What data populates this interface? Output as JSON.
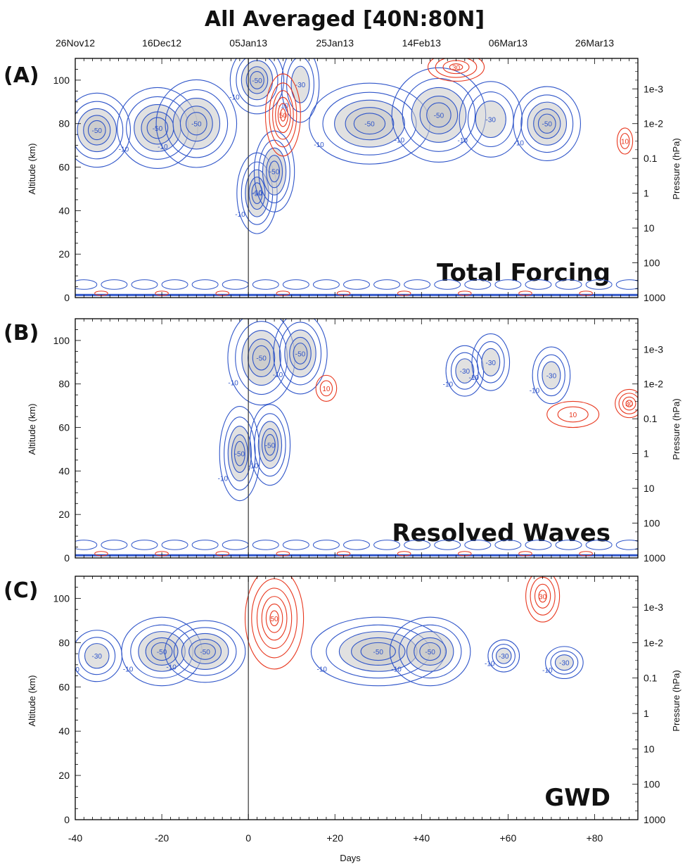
{
  "figure_title": "All Averaged [40N:80N]",
  "colors": {
    "positive": "#e8371e",
    "negative": "#2f55c9",
    "shade": "#c8c8c8",
    "frame": "#000000"
  },
  "chart_data": [
    {
      "type": "heatmap",
      "panel_label": "(A)",
      "inner_label": "Total Forcing",
      "xlabel": "",
      "ylabel": "Altitude (km)",
      "y2label": "Pressure (hPa)",
      "xlim": [
        -40,
        90
      ],
      "ylim": [
        0,
        110
      ],
      "top_dates": [
        "26Nov12",
        "16Dec12",
        "05Jan13",
        "25Jan13",
        "14Feb13",
        "06Mar13",
        "26Mar13"
      ],
      "top_date_days": [
        -40,
        -20,
        0,
        20,
        40,
        60,
        80
      ],
      "yticks": [
        0,
        20,
        40,
        60,
        80,
        100
      ],
      "pressure_ticks": [
        "1000",
        "100",
        "10",
        "1",
        "0.1",
        "1e-2",
        "1e-3"
      ],
      "pressure_tick_alt": [
        0,
        16,
        32,
        48,
        64,
        80,
        96
      ],
      "contour_labels": [
        "-50",
        "-30",
        "-10",
        "10",
        "30",
        "50"
      ],
      "negative_regions": [
        {
          "x": -35,
          "y": 77,
          "rx": 5,
          "ry": 11,
          "min": -50
        },
        {
          "x": -21,
          "y": 78,
          "rx": 6,
          "ry": 12,
          "min": -50
        },
        {
          "x": -12,
          "y": 80,
          "rx": 6,
          "ry": 13,
          "min": -50
        },
        {
          "x": 2,
          "y": 48,
          "rx": 3,
          "ry": 12,
          "min": -50
        },
        {
          "x": 6,
          "y": 58,
          "rx": 3,
          "ry": 12,
          "min": -50
        },
        {
          "x": 2,
          "y": 100,
          "rx": 4,
          "ry": 10,
          "min": -50
        },
        {
          "x": 12,
          "y": 98,
          "rx": 3,
          "ry": 12,
          "min": -30
        },
        {
          "x": 28,
          "y": 80,
          "rx": 9,
          "ry": 12,
          "min": -50
        },
        {
          "x": 44,
          "y": 84,
          "rx": 7,
          "ry": 14,
          "min": -50
        },
        {
          "x": 56,
          "y": 82,
          "rx": 5,
          "ry": 12,
          "min": -30
        },
        {
          "x": 69,
          "y": 80,
          "rx": 5,
          "ry": 11,
          "min": -50
        }
      ],
      "positive_regions": [
        {
          "x": 8,
          "y": 84,
          "rx": 3,
          "ry": 14,
          "max": 50
        },
        {
          "x": 48,
          "y": 106,
          "rx": 5,
          "ry": 5,
          "max": 30
        },
        {
          "x": 87,
          "y": 72,
          "rx": 1.5,
          "ry": 5,
          "max": 10
        }
      ]
    },
    {
      "type": "heatmap",
      "panel_label": "(B)",
      "inner_label": "Resolved Waves",
      "xlabel": "",
      "ylabel": "Altitude (km)",
      "y2label": "Pressure (hPa)",
      "xlim": [
        -40,
        90
      ],
      "ylim": [
        0,
        110
      ],
      "yticks": [
        0,
        20,
        40,
        60,
        80,
        100
      ],
      "pressure_ticks": [
        "1000",
        "100",
        "10",
        "1",
        "0.1",
        "1e-2",
        "1e-3"
      ],
      "pressure_tick_alt": [
        0,
        16,
        32,
        48,
        64,
        80,
        96
      ],
      "contour_labels": [
        "-50",
        "-30",
        "-10",
        "10",
        "30"
      ],
      "negative_regions": [
        {
          "x": 3,
          "y": 92,
          "rx": 5,
          "ry": 14,
          "min": -50
        },
        {
          "x": 12,
          "y": 94,
          "rx": 4,
          "ry": 12,
          "min": -50
        },
        {
          "x": -2,
          "y": 48,
          "rx": 3,
          "ry": 14,
          "min": -50
        },
        {
          "x": 5,
          "y": 52,
          "rx": 3,
          "ry": 12,
          "min": -50
        },
        {
          "x": 50,
          "y": 86,
          "rx": 3,
          "ry": 8,
          "min": -30
        },
        {
          "x": 56,
          "y": 90,
          "rx": 3,
          "ry": 9,
          "min": -30
        },
        {
          "x": 70,
          "y": 84,
          "rx": 3,
          "ry": 9,
          "min": -30
        }
      ],
      "positive_regions": [
        {
          "x": 75,
          "y": 66,
          "rx": 5,
          "ry": 5,
          "max": 10
        },
        {
          "x": 88,
          "y": 71,
          "rx": 2.5,
          "ry": 5,
          "max": 30
        },
        {
          "x": 18,
          "y": 78,
          "rx": 2,
          "ry": 5,
          "max": 10
        }
      ]
    },
    {
      "type": "heatmap",
      "panel_label": "(C)",
      "inner_label": "GWD",
      "xlabel": "Days",
      "ylabel": "Altitude (km)",
      "y2label": "Pressure (hPa)",
      "xlim": [
        -40,
        90
      ],
      "ylim": [
        0,
        110
      ],
      "xticks": [
        -40,
        -20,
        0,
        20,
        40,
        60,
        80
      ],
      "xtick_labels": [
        "-40",
        "-20",
        "0",
        "+20",
        "+40",
        "+60",
        "+80"
      ],
      "yticks": [
        0,
        20,
        40,
        60,
        80,
        100
      ],
      "pressure_ticks": [
        "1000",
        "100",
        "10",
        "1",
        "0.1",
        "1e-2",
        "1e-3"
      ],
      "pressure_tick_alt": [
        0,
        16,
        32,
        48,
        64,
        80,
        96
      ],
      "contour_labels": [
        "-50",
        "-30",
        "-10",
        "10",
        "30",
        "50"
      ],
      "negative_regions": [
        {
          "x": -35,
          "y": 74,
          "rx": 4,
          "ry": 8,
          "min": -30
        },
        {
          "x": -20,
          "y": 76,
          "rx": 6,
          "ry": 10,
          "min": -50
        },
        {
          "x": -10,
          "y": 76,
          "rx": 6,
          "ry": 9,
          "min": -50
        },
        {
          "x": 30,
          "y": 76,
          "rx": 10,
          "ry": 10,
          "min": -50
        },
        {
          "x": 42,
          "y": 76,
          "rx": 6,
          "ry": 10,
          "min": -50
        },
        {
          "x": 59,
          "y": 74,
          "rx": 2.5,
          "ry": 5,
          "min": -30
        },
        {
          "x": 73,
          "y": 71,
          "rx": 3,
          "ry": 5,
          "min": -30
        }
      ],
      "positive_regions": [
        {
          "x": 6,
          "y": 91,
          "rx": 5,
          "ry": 17,
          "max": 50
        },
        {
          "x": 68,
          "y": 101,
          "rx": 3,
          "ry": 9,
          "max": 30
        }
      ]
    }
  ]
}
